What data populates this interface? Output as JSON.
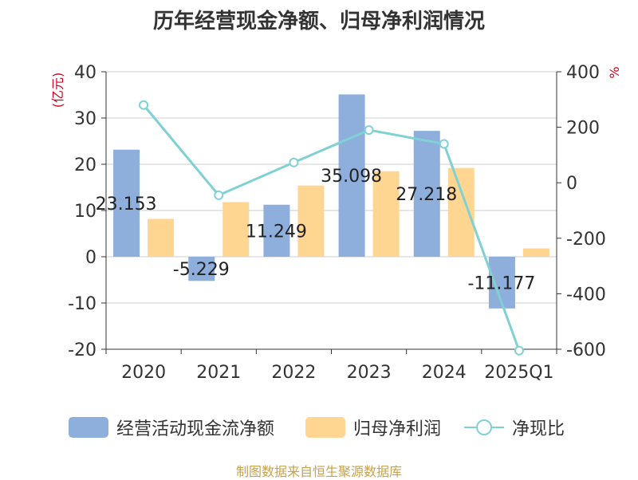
{
  "title": "历年经营现金净额、归母净利润情况",
  "source": "制图数据来自恒生聚源数据库",
  "left_axis_unit": "(亿元)",
  "right_axis_unit": "%",
  "colors": {
    "cash": "#8eaedb",
    "profit": "#ffd592",
    "ratio": "#7fd1d4",
    "unit_text": "#d0021b",
    "grid": "#cccccc",
    "axis": "#333333"
  },
  "legend": [
    {
      "label": "经营活动现金流净额",
      "type": "bar",
      "color": "#8eaedb"
    },
    {
      "label": "归母净利润",
      "type": "bar",
      "color": "#ffd592"
    },
    {
      "label": "净现比",
      "type": "line",
      "color": "#7fd1d4"
    }
  ],
  "chart_data": {
    "type": "bar",
    "categories": [
      "2020",
      "2021",
      "2022",
      "2023",
      "2024",
      "2025Q1"
    ],
    "series": [
      {
        "name": "经营活动现金流净额",
        "axis": "left",
        "kind": "bar",
        "values": [
          23.153,
          -5.229,
          11.249,
          35.098,
          27.218,
          -11.177
        ],
        "labels": [
          "23.153",
          "-5.229",
          "11.249",
          "35.098",
          "27.218",
          "-11.177"
        ]
      },
      {
        "name": "归母净利润",
        "axis": "left",
        "kind": "bar",
        "values": [
          8.2,
          11.8,
          15.4,
          18.5,
          19.2,
          1.8
        ]
      },
      {
        "name": "净现比",
        "axis": "right",
        "kind": "line",
        "values": [
          280,
          -45,
          73,
          190,
          140,
          -605
        ]
      }
    ],
    "left_axis": {
      "min": -20,
      "max": 40,
      "ticks": [
        -20,
        -10,
        0,
        10,
        20,
        30,
        40
      ]
    },
    "right_axis": {
      "min": -600,
      "max": 400,
      "ticks": [
        -600,
        -400,
        -200,
        0,
        200,
        400
      ]
    },
    "grid": true,
    "legend_position": "bottom"
  }
}
